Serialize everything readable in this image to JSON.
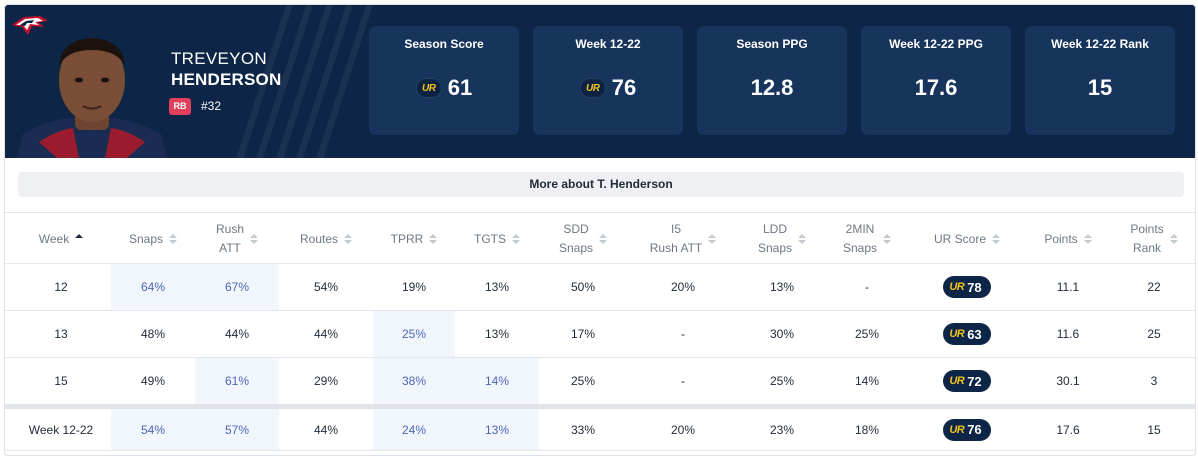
{
  "player": {
    "first_name": "TREVEYON",
    "last_name": "HENDERSON",
    "position": "RB",
    "number": "#32",
    "team_logo_icon": "patriots-logo-icon",
    "headshot_icon": "player-headshot-icon"
  },
  "stats": [
    {
      "label": "Season Score",
      "value": "61",
      "ur_logo": true
    },
    {
      "label": "Week 12-22",
      "value": "76",
      "ur_logo": true
    },
    {
      "label": "Season PPG",
      "value": "12.8",
      "ur_logo": false
    },
    {
      "label": "Week 12-22 PPG",
      "value": "17.6",
      "ur_logo": false
    },
    {
      "label": "Week 12-22 Rank",
      "value": "15",
      "ur_logo": false
    }
  ],
  "ur_logo_text": "UR",
  "more_button": "More about T. Henderson",
  "table": {
    "columns": [
      "Week",
      "Snaps",
      "Rush\nATT",
      "Routes",
      "TPRR",
      "TGTS",
      "SDD\nSnaps",
      "I5\nRush ATT",
      "LDD\nSnaps",
      "2MIN\nSnaps",
      "UR Score",
      "Points",
      "Points\nRank"
    ],
    "rows": [
      [
        "12",
        "64%",
        "67%",
        "54%",
        "19%",
        "13%",
        "50%",
        "20%",
        "13%",
        "-",
        "78",
        "11.1",
        "22"
      ],
      [
        "13",
        "48%",
        "44%",
        "44%",
        "25%",
        "13%",
        "17%",
        "-",
        "30%",
        "25%",
        "63",
        "11.6",
        "25"
      ],
      [
        "15",
        "49%",
        "61%",
        "29%",
        "38%",
        "14%",
        "25%",
        "-",
        "25%",
        "14%",
        "72",
        "30.1",
        "3"
      ]
    ],
    "total": [
      "Week 12-22",
      "54%",
      "57%",
      "44%",
      "24%",
      "13%",
      "33%",
      "20%",
      "23%",
      "18%",
      "76",
      "17.6",
      "15"
    ]
  },
  "colors": {
    "header_bg": "#0d2546",
    "stat_card_bg": "#16345c",
    "highlight_bg": "#f1f6fd",
    "highlight_text": "#4d66b6",
    "ur_gold": "#f2c31b",
    "position_badge": "#e0405c"
  }
}
